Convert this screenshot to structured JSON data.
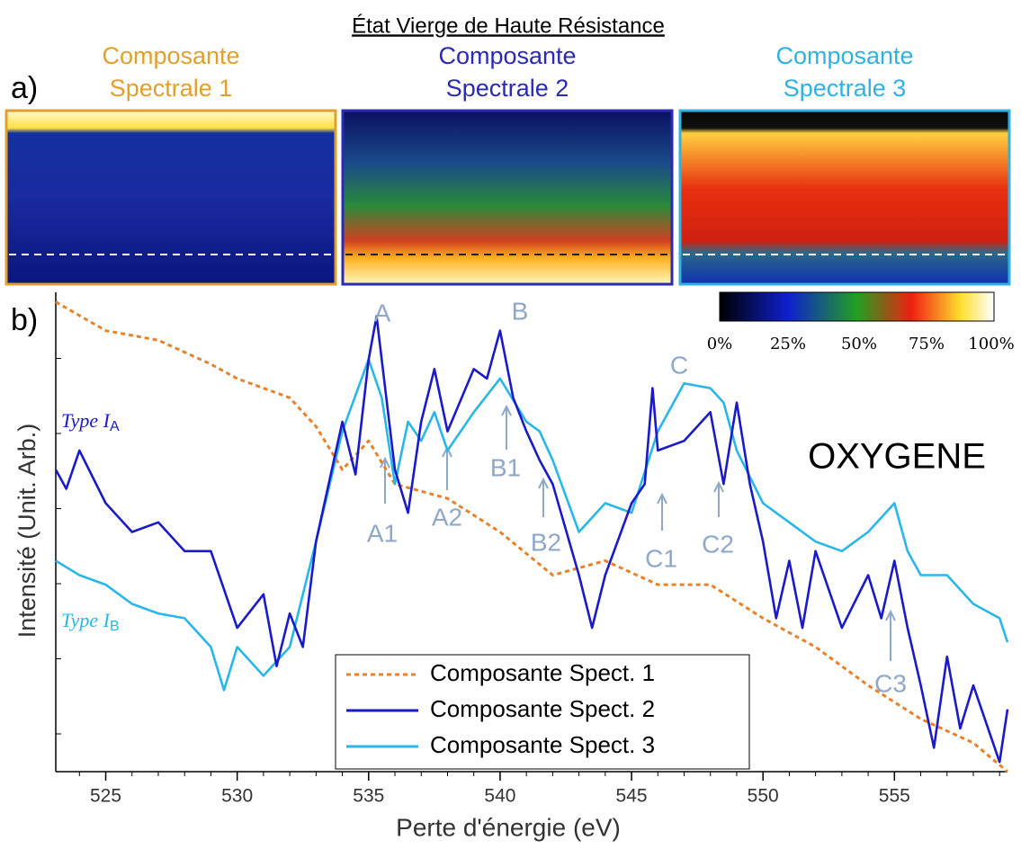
{
  "header": {
    "title": "État Vierge de Haute Résistance",
    "panel_a": "a)",
    "panel_b": "b)"
  },
  "maps": [
    {
      "lines": [
        "Composante",
        "Spectrale 1"
      ],
      "color": "#e0a02e"
    },
    {
      "lines": [
        "Composante",
        "Spectrale 2"
      ],
      "color": "#2a2ab4"
    },
    {
      "lines": [
        "Composante",
        "Spectrale 3"
      ],
      "color": "#2fb2e2"
    }
  ],
  "colorbar": {
    "labels": [
      "0%",
      "25%",
      "50%",
      "75%",
      "100%"
    ]
  },
  "chart_data": {
    "type": "line",
    "xlabel": "Perte d'énergie (eV)",
    "ylabel": "Intensité (Unit. Arb.)",
    "xlim": [
      523.1,
      559.3
    ],
    "ylim": [
      0,
      100
    ],
    "xticks": [
      525,
      530,
      535,
      540,
      545,
      550,
      555
    ],
    "series": [
      {
        "name": "Composante Spect. 1",
        "color": "#e8822a",
        "dash": "dotted",
        "x": [
          523.1,
          525,
          527,
          529,
          530,
          532,
          533,
          534,
          535,
          536,
          538,
          540,
          542,
          544,
          546,
          548,
          550,
          552,
          554,
          556,
          558,
          559.3
        ],
        "values": [
          98,
          92,
          90,
          85,
          82,
          78,
          72,
          63,
          69,
          60,
          57,
          50,
          41,
          44,
          39,
          39,
          32,
          26,
          18,
          11,
          6,
          0
        ]
      },
      {
        "name": "Composante Spect. 2",
        "color": "#1a1ac8",
        "dash": "solid",
        "x": [
          523.1,
          523.5,
          524,
          525,
          526,
          527,
          528,
          529,
          530,
          531,
          531.5,
          532,
          532.5,
          533,
          534,
          534.5,
          535,
          535.3,
          536,
          536.5,
          537,
          537.5,
          538,
          539,
          539.5,
          540,
          540.5,
          541,
          541.5,
          542,
          543,
          543.5,
          544,
          545,
          545.5,
          545.8,
          546,
          547,
          548,
          548.5,
          549,
          549.5,
          550,
          550.5,
          551,
          551.5,
          552,
          553,
          554,
          554.5,
          555,
          555.5,
          556,
          556.5,
          557,
          557.5,
          558,
          559,
          559.3
        ],
        "values": [
          63,
          59,
          67,
          56,
          50,
          52,
          46,
          46,
          30,
          37,
          22,
          33,
          26,
          48,
          73,
          62,
          86,
          95,
          63,
          54,
          73,
          84,
          71,
          84,
          82,
          92,
          78,
          71,
          65,
          60,
          41,
          30,
          41,
          56,
          60,
          80,
          67,
          69,
          75,
          60,
          77,
          60,
          48,
          32,
          44,
          30,
          46,
          30,
          41,
          32,
          44,
          30,
          18,
          5,
          24,
          9,
          18,
          2,
          13
        ]
      },
      {
        "name": "Composante Spect. 3",
        "color": "#29b6e8",
        "dash": "solid",
        "x": [
          523.1,
          524,
          525,
          526,
          527,
          528,
          529,
          529.5,
          530,
          531,
          532,
          533,
          534,
          535,
          535.5,
          536,
          536.5,
          537,
          537.5,
          538,
          539,
          540,
          541,
          541.5,
          542,
          543,
          544,
          545,
          546,
          547,
          548,
          548.5,
          549,
          550,
          551,
          552,
          553,
          554,
          555,
          555.5,
          556,
          557,
          558,
          559,
          559.3
        ],
        "values": [
          44,
          41,
          39,
          35,
          33,
          32,
          26,
          17,
          26,
          20,
          26,
          48,
          71,
          86,
          78,
          60,
          73,
          69,
          75,
          67,
          75,
          82,
          73,
          71,
          65,
          50,
          56,
          54,
          71,
          81,
          80,
          77,
          67,
          56,
          52,
          48,
          46,
          50,
          56,
          46,
          41,
          41,
          35,
          32,
          27
        ]
      }
    ],
    "annotations": [
      "A",
      "B",
      "C",
      "A1",
      "A2",
      "B1",
      "B2",
      "C1",
      "C2",
      "C3"
    ],
    "element": "OXYGENE",
    "type_labels": [
      {
        "text": "Type I",
        "sub": "A"
      },
      {
        "text": "Type I",
        "sub": "B"
      }
    ]
  }
}
